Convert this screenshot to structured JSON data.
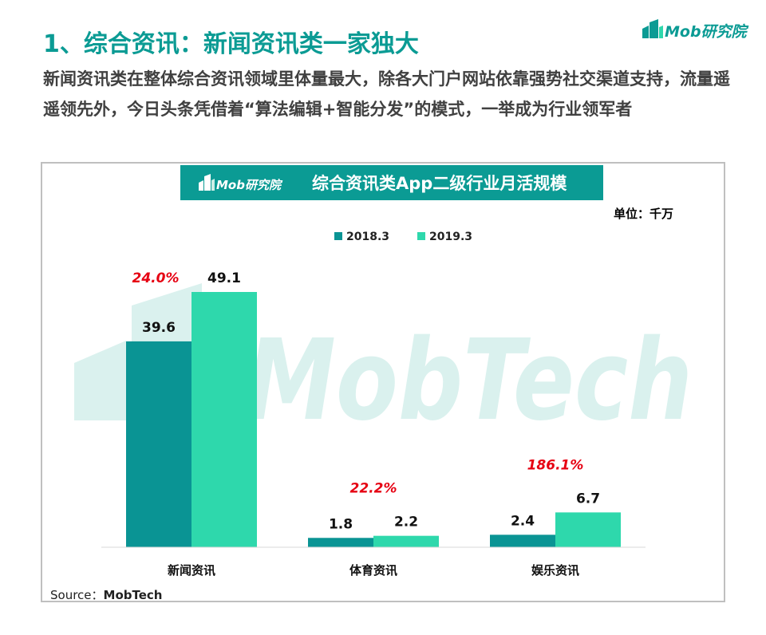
{
  "page": {
    "title": "1、综合资讯：新闻资讯类一家独大",
    "subtitle": "新闻资讯类在整体综合资讯领域里体量最大，除各大门户网站依靠强势社交渠道支持，流量遥遥领先外，今日头条凭借着“算法编辑+智能分发”的模式，一举成为行业领军者",
    "logo_text": "Mob研究院"
  },
  "colors": {
    "accent": "#0b9b94",
    "series_2018": "#0a9494",
    "series_2019": "#2ed8ac",
    "growth_label": "#e60012",
    "watermark": "#d9f2ee"
  },
  "chart_data": {
    "type": "bar",
    "title": "综合资讯类App二级行业月活规模",
    "title_logo": "Mob研究院",
    "unit_label": "单位：千万",
    "categories": [
      "新闻资讯",
      "体育资讯",
      "娱乐资讯"
    ],
    "series": [
      {
        "name": "2018.3",
        "values": [
          39.6,
          1.8,
          2.4
        ]
      },
      {
        "name": "2019.3",
        "values": [
          49.1,
          2.2,
          6.7
        ]
      }
    ],
    "growth_labels": [
      "24.0%",
      "22.2%",
      "186.1%"
    ],
    "ylim": [
      0,
      49.1
    ],
    "legend_position": "top",
    "grid": false,
    "watermark": "MobTech",
    "source_prefix": "Source：",
    "source_name": "MobTech"
  }
}
